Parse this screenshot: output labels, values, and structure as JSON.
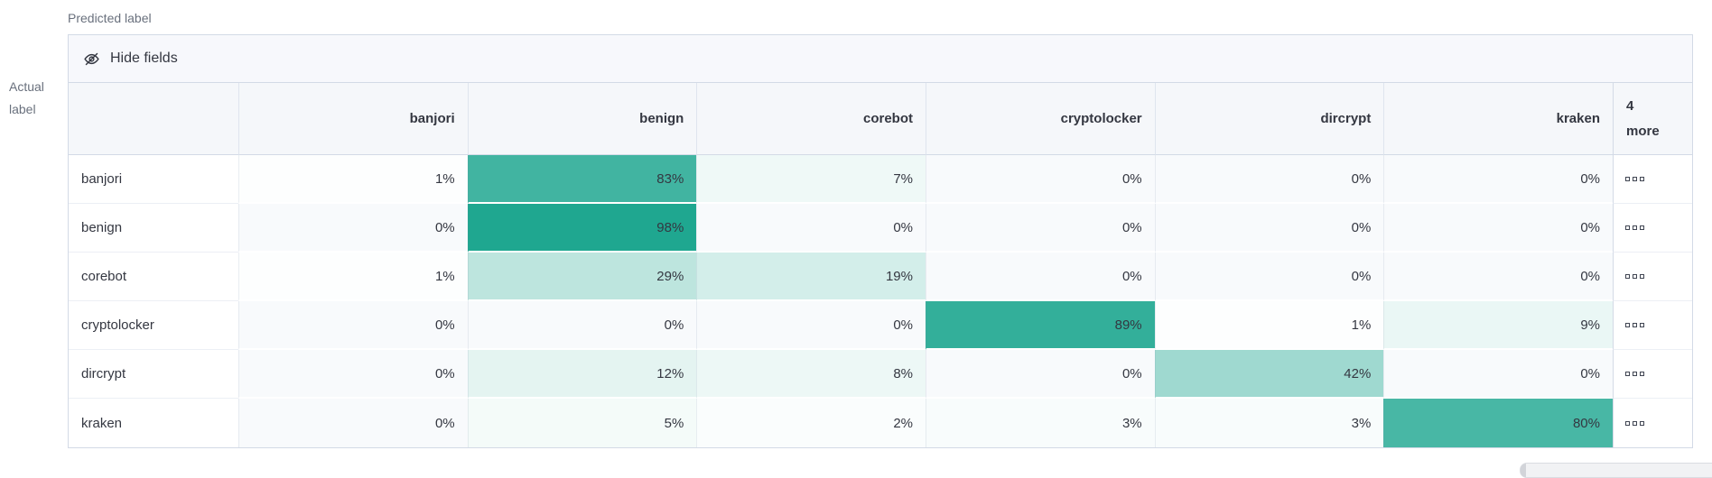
{
  "axis": {
    "predicted_label": "Predicted label",
    "actual_label": "Actual label"
  },
  "toolbar": {
    "hide_fields_label": "Hide fields",
    "icon": "eye-closed-icon"
  },
  "matrix": {
    "columns": [
      "banjori",
      "benign",
      "corebot",
      "cryptolocker",
      "dircrypt",
      "kraken"
    ],
    "more_column_label": "4\nmore",
    "more_cell_icon": "boxes-horizontal-icon",
    "value_suffix": "%",
    "rows": [
      {
        "label": "banjori",
        "values": [
          1,
          83,
          7,
          0,
          0,
          0
        ]
      },
      {
        "label": "benign",
        "values": [
          0,
          98,
          0,
          0,
          0,
          0
        ]
      },
      {
        "label": "corebot",
        "values": [
          1,
          29,
          19,
          0,
          0,
          0
        ]
      },
      {
        "label": "cryptolocker",
        "values": [
          0,
          0,
          0,
          89,
          1,
          9
        ]
      },
      {
        "label": "dircrypt",
        "values": [
          0,
          12,
          8,
          0,
          42,
          0
        ]
      },
      {
        "label": "kraken",
        "values": [
          0,
          5,
          2,
          3,
          3,
          80
        ]
      }
    ]
  },
  "colors": {
    "heat_base": "#1aa58e",
    "zero_cell_bg": "#f8fafc",
    "border": "#d3dae6",
    "header_bg": "#f5f7fa",
    "toolbar_bg": "#f7f8fc",
    "text": "#343741",
    "axis_label_text": "#69707d"
  }
}
